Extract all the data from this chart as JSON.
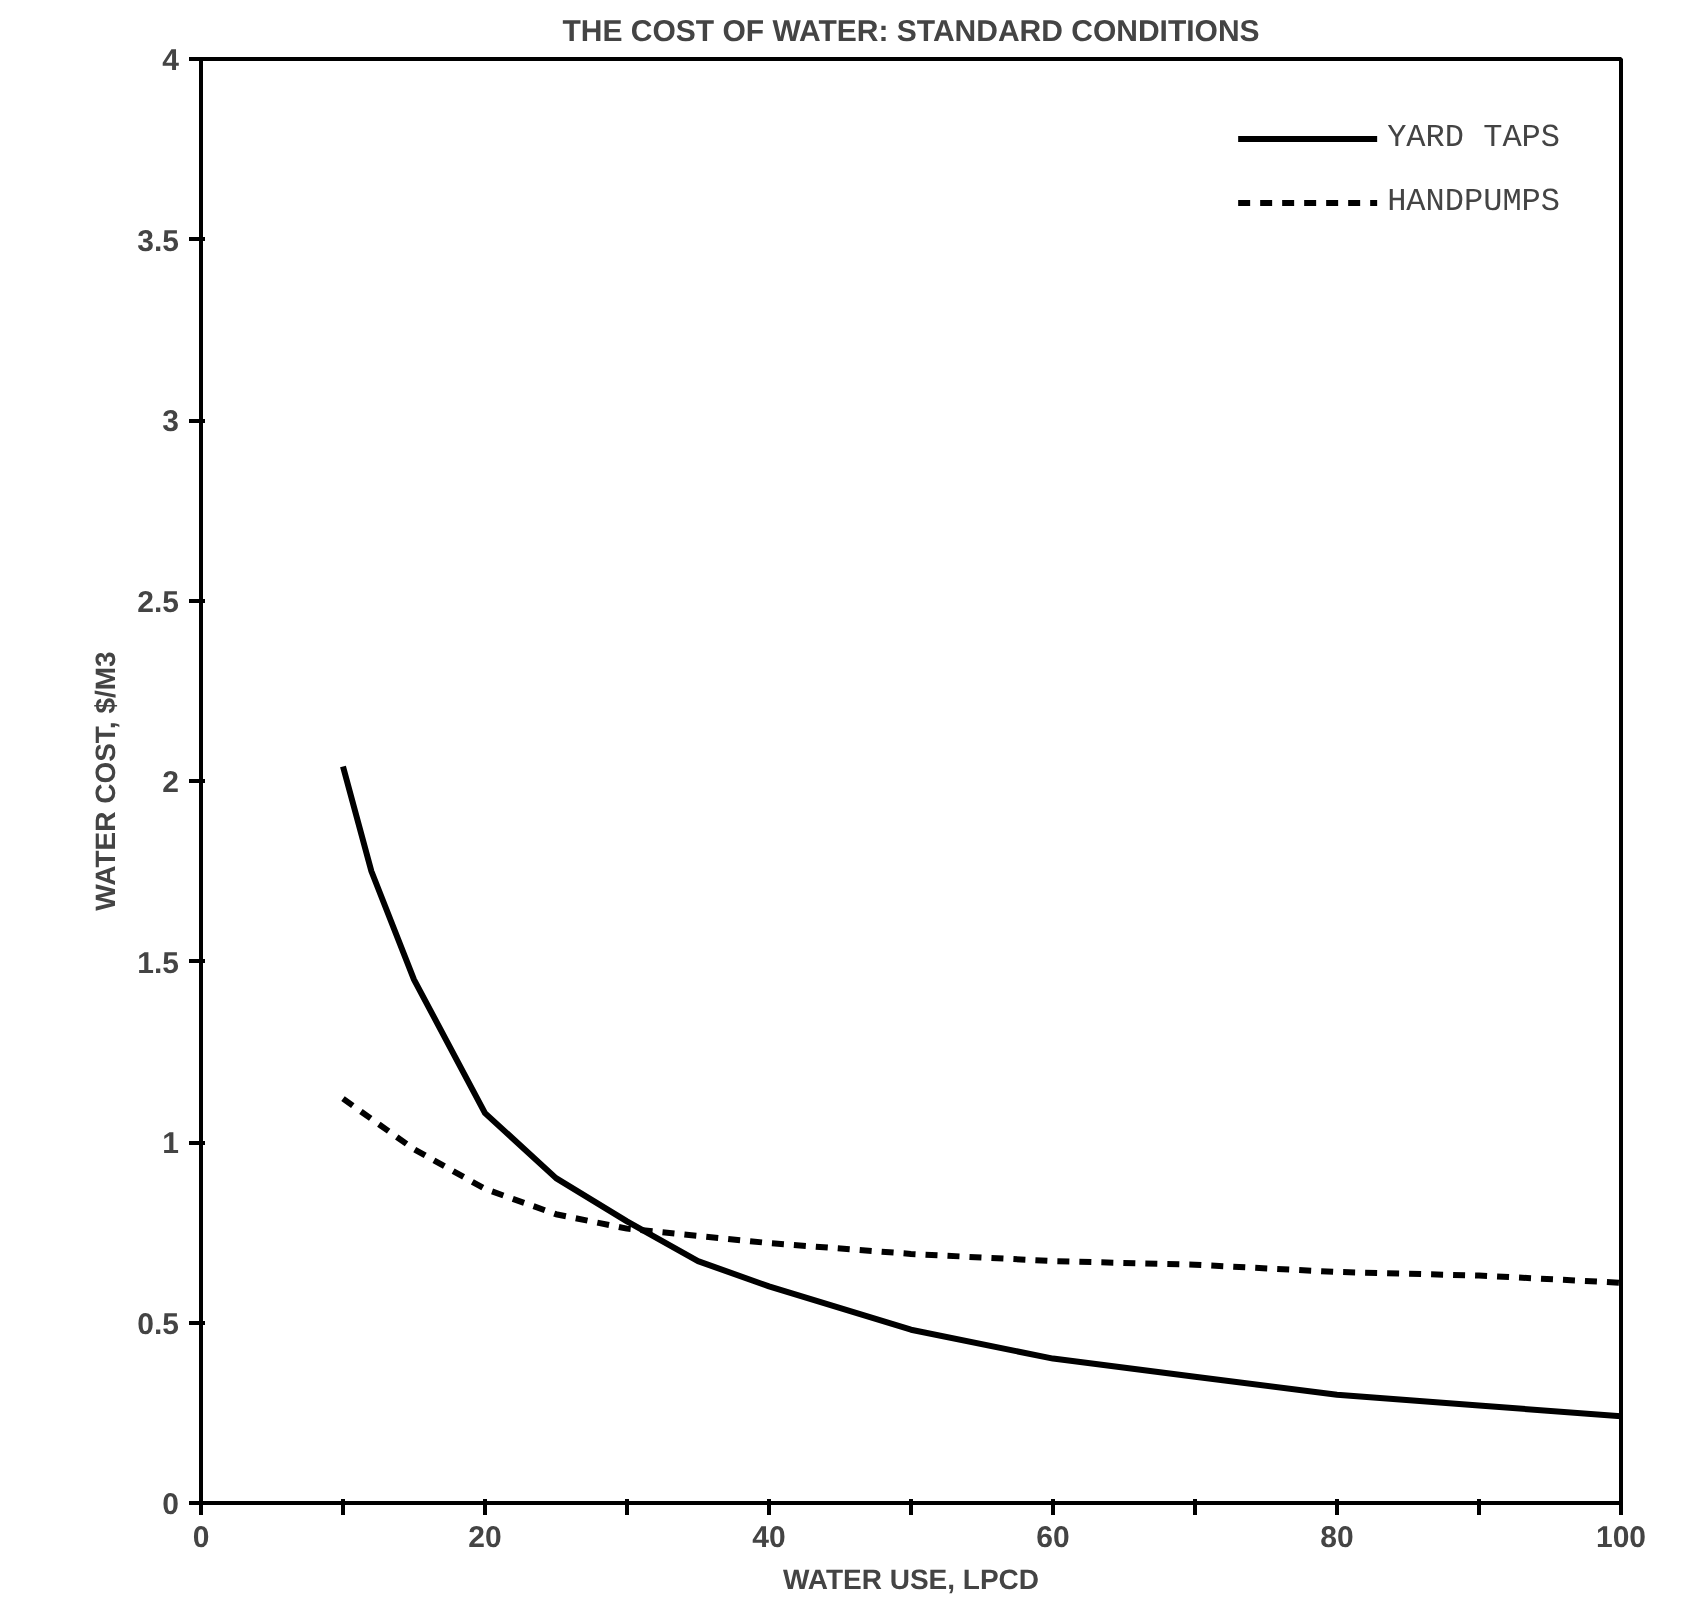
{
  "chart_data": {
    "type": "line",
    "title": "THE COST OF WATER: STANDARD CONDITIONS",
    "xlabel": "WATER USE, LPCD",
    "ylabel": "WATER COST, $/M3",
    "xlim": [
      0,
      100
    ],
    "ylim": [
      0,
      4
    ],
    "xticks": [
      0,
      {
        "value": 10,
        "label": null
      },
      20,
      {
        "value": 30,
        "label": null
      },
      40,
      {
        "value": 50,
        "label": null
      },
      60,
      {
        "value": 70,
        "label": null
      },
      80,
      {
        "value": 90,
        "label": null
      },
      100
    ],
    "yticks": [
      0,
      0.5,
      1,
      1.5,
      2,
      2.5,
      3,
      3.5,
      4
    ],
    "grid": false,
    "legend": "top right",
    "series": [
      {
        "name": "YARD TAPS",
        "color": "#000000",
        "line_style": "solid",
        "x": [
          10,
          12,
          15,
          20,
          25,
          30,
          35,
          40,
          50,
          60,
          70,
          80,
          90,
          100
        ],
        "values": [
          2.04,
          1.75,
          1.45,
          1.08,
          0.9,
          0.78,
          0.67,
          0.6,
          0.48,
          0.4,
          0.35,
          0.3,
          0.27,
          0.24
        ]
      },
      {
        "name": "HANDPUMPS",
        "color": "#000000",
        "line_style": "dashed",
        "x": [
          10,
          15,
          20,
          25,
          30,
          40,
          50,
          60,
          70,
          80,
          90,
          100
        ],
        "values": [
          1.12,
          0.98,
          0.87,
          0.8,
          0.76,
          0.72,
          0.69,
          0.67,
          0.66,
          0.64,
          0.63,
          0.61
        ]
      }
    ]
  }
}
